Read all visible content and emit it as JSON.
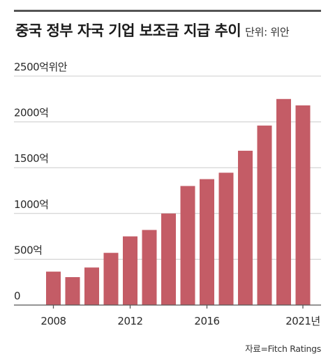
{
  "header": {
    "title": "중국 정부 자국 기업 보조금 지급 추이",
    "unit": "단위: 위안"
  },
  "footer": {
    "source": "자료=Fitch Ratings"
  },
  "chart_data": {
    "type": "bar",
    "title": "중국 정부 자국 기업 보조금 지급 추이",
    "unit": "단위: 위안",
    "xlabel": "",
    "ylabel": "",
    "categories": [
      "2008",
      "2009",
      "2010",
      "2011",
      "2012",
      "2013",
      "2014",
      "2015",
      "2016",
      "2017",
      "2018",
      "2019",
      "2020",
      "2021"
    ],
    "x_tick_labels": [
      {
        "category": "2008",
        "label": "2008"
      },
      {
        "category": "2012",
        "label": "2012"
      },
      {
        "category": "2016",
        "label": "2016"
      },
      {
        "category": "2021",
        "label": "2021년"
      }
    ],
    "y_tick_labels": [
      {
        "value": 0,
        "label": "0"
      },
      {
        "value": 500,
        "label": "500억"
      },
      {
        "value": 1000,
        "label": "1000억"
      },
      {
        "value": 1500,
        "label": "1500억"
      },
      {
        "value": 2000,
        "label": "2000억"
      },
      {
        "value": 2500,
        "label": "2500억위안"
      }
    ],
    "values": [
      365,
      305,
      410,
      570,
      750,
      820,
      1000,
      1300,
      1375,
      1445,
      1685,
      1960,
      2250,
      2180
    ],
    "ylim": [
      0,
      2500
    ],
    "grid": true,
    "legend": "none",
    "bar_color": "#c45c66",
    "grid_color": "#cccccc",
    "axis_color": "#555555"
  }
}
